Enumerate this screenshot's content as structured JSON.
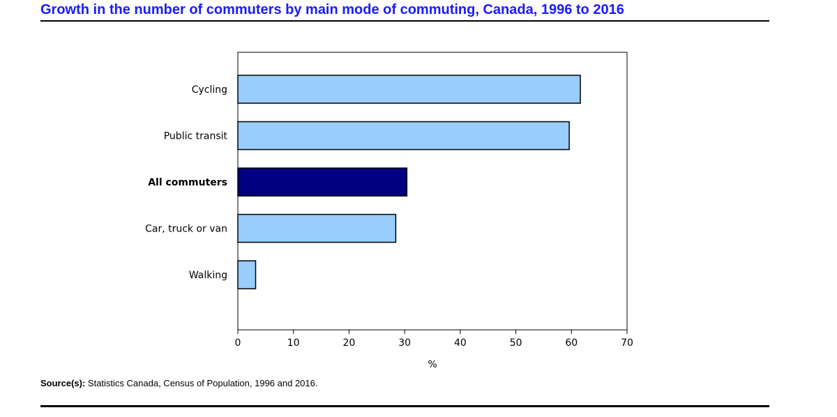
{
  "chart_data": {
    "type": "bar",
    "orientation": "horizontal",
    "title": "Growth in the number of commuters by main mode of commuting, Canada, 1996 to 2016",
    "categories": [
      "Cycling",
      "Public transit",
      "All commuters",
      "Car, truck or van",
      "Walking"
    ],
    "values": [
      61.6,
      59.6,
      30.4,
      28.4,
      3.2
    ],
    "highlight": "All commuters",
    "xlabel": "%",
    "ylabel": "",
    "xlim": [
      0,
      70
    ],
    "xticks": [
      "0",
      "10",
      "20",
      "30",
      "40",
      "50",
      "60",
      "70"
    ],
    "grid": false,
    "colors": {
      "bar": "#99ccff",
      "highlight": "#000080",
      "title": "#1a1aff"
    }
  },
  "source": {
    "label": "Source(s):",
    "text": "Statistics Canada, Census of Population, 1996 and 2016."
  }
}
